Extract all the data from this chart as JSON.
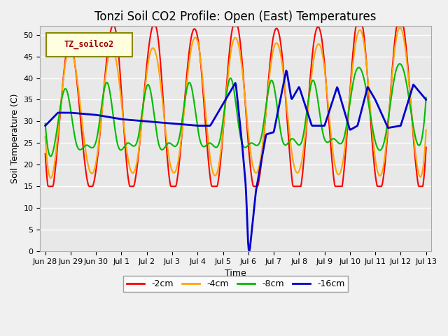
{
  "title": "Tonzi Soil CO2 Profile: Open (East) Temperatures",
  "xlabel": "Time",
  "ylabel": "Soil Temperature (C)",
  "legend_label": "TZ_soilco2",
  "ylim": [
    0,
    52
  ],
  "yticks": [
    0,
    5,
    10,
    15,
    20,
    25,
    30,
    35,
    40,
    45,
    50
  ],
  "tick_labels": [
    "Jun 28",
    "Jun 29",
    "Jun 30",
    "Jul 1",
    "Jul 2",
    "Jul 3",
    "Jul 4",
    "Jul 5",
    "Jul 6",
    "Jul 7",
    "Jul 8",
    "Jul 9",
    "Jul 10",
    "Jul 11",
    "Jul 12",
    "Jul 13"
  ],
  "series": {
    "neg2cm": {
      "color": "#ff0000",
      "label": "-2cm",
      "linewidth": 1.5
    },
    "neg4cm": {
      "color": "#ffa500",
      "label": "-4cm",
      "linewidth": 1.5
    },
    "neg8cm": {
      "color": "#00bb00",
      "label": "-8cm",
      "linewidth": 1.5
    },
    "neg16cm": {
      "color": "#0000cc",
      "label": "-16cm",
      "linewidth": 2.0
    }
  },
  "plot_bg_color": "#e8e8e8",
  "fig_bg_color": "#f0f0f0",
  "grid_color": "#ffffff",
  "title_fontsize": 12,
  "axis_fontsize": 9,
  "tick_fontsize": 8,
  "neg2_pts": [
    22.5,
    19.5,
    45.0,
    41.0,
    17.5,
    20.0,
    45.0,
    48.5,
    18.0,
    21.0,
    46.0,
    48.5,
    18.0,
    20.0,
    46.5,
    46.0,
    17.5,
    20.0,
    48.5,
    47.0,
    18.0,
    20.5,
    47.0,
    45.5,
    16.0,
    18.0,
    46.5,
    46.5,
    17.5,
    18.0,
    48.5,
    49.0,
    19.0,
    20.0,
    49.5,
    48.5,
    20.0,
    24.0
  ],
  "neg4_pts": [
    26.5,
    22.0,
    44.0,
    41.5,
    22.0,
    21.5,
    43.0,
    42.5,
    22.0,
    22.0,
    43.5,
    42.5,
    22.0,
    22.0,
    44.0,
    46.0,
    22.0,
    22.0,
    45.5,
    44.5,
    22.0,
    22.5,
    44.5,
    43.5,
    22.0,
    22.0,
    43.0,
    44.5,
    22.0,
    22.0,
    45.5,
    47.5,
    22.5,
    22.0,
    47.5,
    46.5,
    22.0,
    28.0
  ],
  "neg8_pts": [
    29.5,
    26.0,
    37.5,
    25.0,
    24.5,
    26.0,
    39.0,
    25.0,
    25.0,
    26.0,
    38.5,
    25.0,
    25.0,
    26.0,
    39.0,
    26.0,
    25.0,
    26.0,
    40.0,
    26.0,
    25.0,
    26.5,
    39.5,
    26.0,
    26.0,
    26.0,
    39.5,
    27.0,
    26.0,
    26.0,
    40.0,
    39.5,
    26.0,
    26.0,
    41.0,
    40.0,
    26.0,
    35.5
  ],
  "neg16_pts_x": [
    0.0,
    0.5,
    1.0,
    2.0,
    3.0,
    4.0,
    5.0,
    6.0,
    6.5,
    7.0,
    7.5,
    7.75,
    7.9,
    8.0,
    8.05,
    8.3,
    8.7,
    9.0,
    9.5,
    9.7,
    10.0,
    10.5,
    11.0,
    11.5,
    12.0,
    12.3,
    12.7,
    13.0,
    13.5,
    14.0,
    14.5,
    15.0
  ],
  "neg16_pts_y": [
    29.0,
    32.0,
    32.0,
    31.5,
    30.5,
    30.0,
    29.5,
    29.0,
    29.0,
    34.0,
    39.0,
    25.0,
    15.0,
    0.5,
    0.0,
    14.0,
    27.0,
    27.5,
    42.0,
    35.0,
    38.0,
    29.0,
    29.0,
    38.0,
    28.0,
    29.0,
    38.0,
    35.0,
    28.5,
    29.0,
    38.5,
    35.0
  ]
}
